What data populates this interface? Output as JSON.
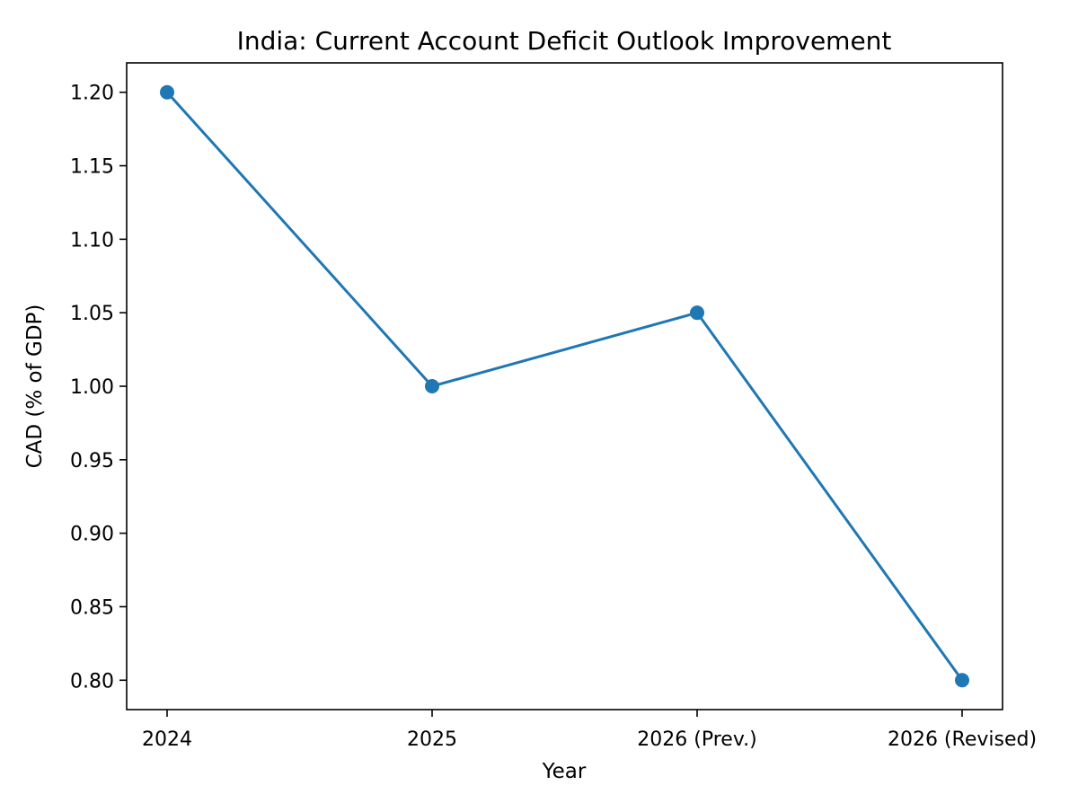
{
  "chart_data": {
    "type": "line",
    "title": "India: Current Account Deficit Outlook Improvement",
    "xlabel": "Year",
    "ylabel": "CAD (% of GDP)",
    "categories": [
      "2024",
      "2025",
      "2026 (Prev.)",
      "2026 (Revised)"
    ],
    "series": [
      {
        "name": "CAD",
        "values": [
          1.2,
          1.0,
          1.05,
          0.8
        ],
        "color": "#1f77b4",
        "marker": "circle"
      }
    ],
    "ylim": [
      0.78,
      1.22
    ],
    "yticks": [
      0.8,
      0.85,
      0.9,
      0.95,
      1.0,
      1.05,
      1.1,
      1.15,
      1.2
    ],
    "ytick_labels": [
      "0.80",
      "0.85",
      "0.90",
      "0.95",
      "1.00",
      "1.05",
      "1.10",
      "1.15",
      "1.20"
    ],
    "grid": false,
    "legend": "none"
  }
}
